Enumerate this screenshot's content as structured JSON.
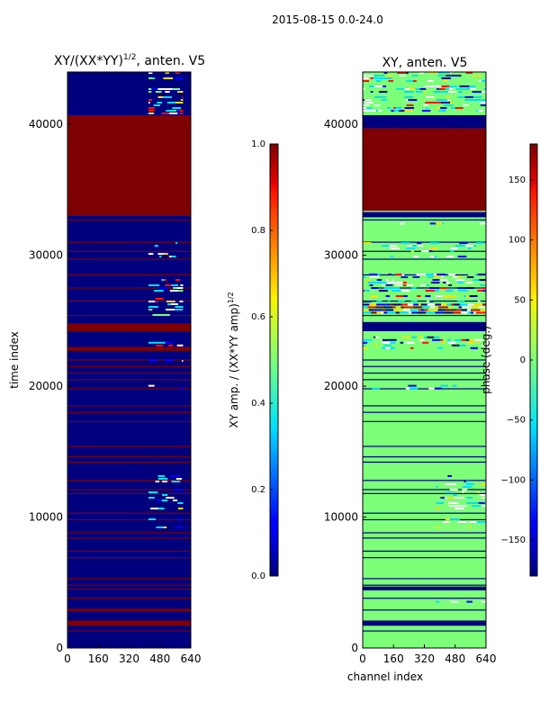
{
  "figure_title": "2015-08-15 0.0-24.0",
  "colors": {
    "navy": "#00007f",
    "darkred": "#7f0000",
    "green": "#7dff7a",
    "white": "#ffffff"
  },
  "chart_data": [
    {
      "type": "heatmap",
      "title_main": "XY/(XX*YY)",
      "title_sup": "1/2",
      "title_suffix": ", anten. V5",
      "xlabel": "",
      "ylabel": "time index",
      "xlim": [
        0,
        640
      ],
      "ylim": [
        0,
        44000
      ],
      "xticks": [
        0,
        160,
        320,
        480,
        640
      ],
      "yticks": [
        0,
        10000,
        20000,
        30000,
        40000
      ],
      "colorbar": {
        "label_main": "XY amp. / (XX*YY amp)",
        "label_sup": "1/2",
        "vmin": 0.0,
        "vmax": 1.0,
        "ticks": [
          "0.0",
          "0.2",
          "0.4",
          "0.6",
          "0.8",
          "1.0"
        ],
        "tick_values": [
          0.0,
          0.2,
          0.4,
          0.6,
          0.8,
          1.0
        ]
      },
      "background_color": "navy",
      "saturated_blocks": [
        {
          "y_start": 33000,
          "y_end": 40700,
          "color": "darkred"
        },
        {
          "y_start": 24200,
          "y_end": 24800,
          "color": "darkred"
        },
        {
          "y_start": 22700,
          "y_end": 23000,
          "color": "darkred"
        },
        {
          "y_start": 1700,
          "y_end": 2100,
          "color": "darkred"
        },
        {
          "y_start": 2800,
          "y_end": 3000,
          "color": "darkred"
        }
      ],
      "red_lines_y": [
        1300,
        2900,
        3800,
        4500,
        4800,
        5300,
        6900,
        7400,
        8400,
        8800,
        9800,
        10300,
        11800,
        12100,
        12800,
        14200,
        14600,
        15400,
        17300,
        18000,
        18500,
        19800,
        20500,
        21000,
        21500,
        22000,
        25400,
        26500,
        27500,
        28500,
        29700,
        30300,
        31000,
        32700
      ],
      "active_rows": [
        {
          "y_start": 40900,
          "y_end": 44000,
          "x_start": 420,
          "x_end": 600,
          "intensity": "high"
        },
        {
          "y_start": 25300,
          "y_end": 28600,
          "x_start": 420,
          "x_end": 600,
          "intensity": "high"
        },
        {
          "y_start": 29800,
          "y_end": 31000,
          "x_start": 420,
          "x_end": 600,
          "intensity": "medium"
        },
        {
          "y_start": 22800,
          "y_end": 23800,
          "x_start": 420,
          "x_end": 600,
          "intensity": "high"
        },
        {
          "y_start": 9200,
          "y_end": 13200,
          "x_start": 420,
          "x_end": 600,
          "intensity": "medium"
        },
        {
          "y_start": 21700,
          "y_end": 22200,
          "x_start": 420,
          "x_end": 600,
          "intensity": "low"
        },
        {
          "y_start": 19700,
          "y_end": 20100,
          "x_start": 420,
          "x_end": 600,
          "intensity": "low"
        },
        {
          "y_start": 3000,
          "y_end": 3600,
          "x_start": 420,
          "x_end": 600,
          "intensity": "low"
        }
      ]
    },
    {
      "type": "heatmap",
      "title_main": "XY, anten. V5",
      "title_sup": "",
      "title_suffix": "",
      "xlabel": "channel index",
      "ylabel": "",
      "xlim": [
        0,
        640
      ],
      "ylim": [
        0,
        44000
      ],
      "xticks": [
        0,
        160,
        320,
        480,
        640
      ],
      "yticks": [
        0,
        10000,
        20000,
        30000,
        40000
      ],
      "colorbar": {
        "label_main": "phase (deg.)",
        "label_sup": "",
        "vmin": -180,
        "vmax": 180,
        "ticks": [
          "−150",
          "−100",
          "−50",
          "0",
          "50",
          "100",
          "150"
        ],
        "tick_values": [
          -150,
          -100,
          -50,
          0,
          50,
          100,
          150
        ]
      },
      "background_color": "green",
      "saturated_blocks": [
        {
          "y_start": 33400,
          "y_end": 39700,
          "color": "darkred"
        },
        {
          "y_start": 39700,
          "y_end": 40700,
          "color": "navy"
        },
        {
          "y_start": 32900,
          "y_end": 33300,
          "color": "navy"
        },
        {
          "y_start": 24200,
          "y_end": 24900,
          "color": "navy"
        },
        {
          "y_start": 1700,
          "y_end": 2100,
          "color": "navy"
        },
        {
          "y_start": 4400,
          "y_end": 4700,
          "color": "navy"
        }
      ],
      "navy_lines_y": [
        1300,
        2900,
        3800,
        4500,
        4800,
        5300,
        6900,
        7400,
        8400,
        8800,
        9800,
        10300,
        11800,
        12100,
        12800,
        14200,
        14600,
        15400,
        17300,
        18000,
        18500,
        19800,
        20500,
        21000,
        21500,
        22000,
        25400,
        26500,
        27500,
        28500,
        29700,
        30300,
        31000,
        32700
      ],
      "active_rows": [
        {
          "y_start": 40900,
          "y_end": 44000,
          "x_start": 0,
          "x_end": 640,
          "intensity": "high"
        },
        {
          "y_start": 25500,
          "y_end": 26300,
          "x_start": 0,
          "x_end": 640,
          "intensity": "extreme"
        },
        {
          "y_start": 26400,
          "y_end": 28600,
          "x_start": 0,
          "x_end": 640,
          "intensity": "high"
        },
        {
          "y_start": 29800,
          "y_end": 31000,
          "x_start": 0,
          "x_end": 640,
          "intensity": "medium"
        },
        {
          "y_start": 22800,
          "y_end": 23800,
          "x_start": 0,
          "x_end": 640,
          "intensity": "high"
        },
        {
          "y_start": 32300,
          "y_end": 32700,
          "x_start": 0,
          "x_end": 640,
          "intensity": "medium"
        },
        {
          "y_start": 9200,
          "y_end": 13200,
          "x_start": 380,
          "x_end": 640,
          "intensity": "medium"
        },
        {
          "y_start": 19700,
          "y_end": 20100,
          "x_start": 0,
          "x_end": 640,
          "intensity": "low"
        },
        {
          "y_start": 3000,
          "y_end": 3600,
          "x_start": 0,
          "x_end": 640,
          "intensity": "low"
        }
      ]
    }
  ]
}
